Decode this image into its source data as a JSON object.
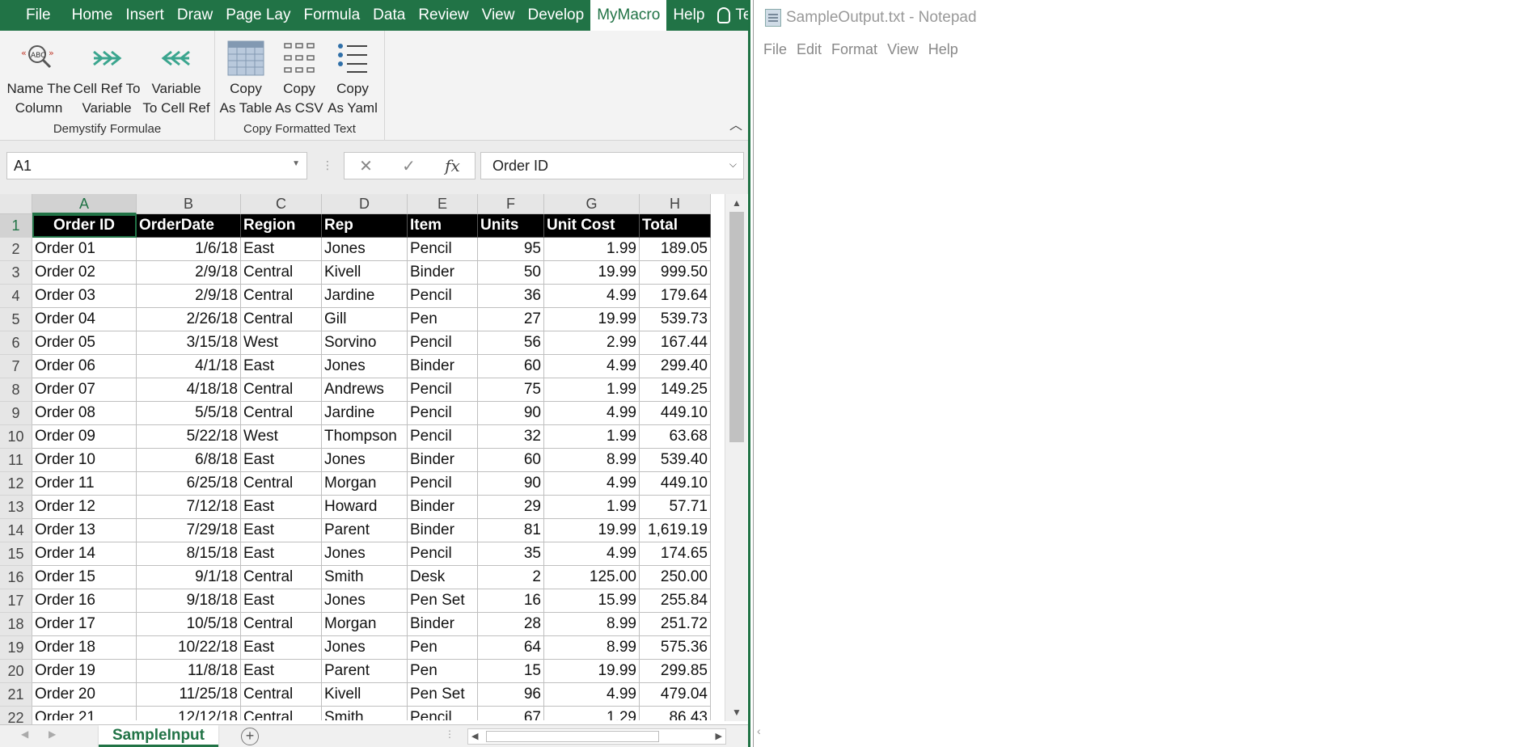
{
  "excel": {
    "tabs": [
      "File",
      "Home",
      "Insert",
      "Draw",
      "Page Lay",
      "Formula",
      "Data",
      "Review",
      "View",
      "Develop",
      "MyMacro",
      "Help"
    ],
    "active_tab": "MyMacro",
    "tell_me": "Tell me w",
    "groups": {
      "demystify": {
        "label": "Demystify Formulae",
        "buttons": [
          {
            "line1": "Name The",
            "line2": "Column"
          },
          {
            "line1": "Cell Ref To",
            "line2": "Variable"
          },
          {
            "line1": "Variable",
            "line2": "To Cell Ref"
          }
        ]
      },
      "copy_formatted": {
        "label": "Copy Formatted Text",
        "buttons": [
          {
            "line1": "Copy",
            "line2": "As Table"
          },
          {
            "line1": "Copy",
            "line2": "As CSV"
          },
          {
            "line1": "Copy",
            "line2": "As Yaml"
          }
        ]
      }
    },
    "name_box": "A1",
    "formula_fx": "fx",
    "formula_value": "Order ID",
    "columns": [
      "A",
      "B",
      "C",
      "D",
      "E",
      "F",
      "G",
      "H"
    ],
    "header_row": [
      "Order ID",
      "OrderDate",
      "Region",
      "Rep",
      "Item",
      "Units",
      "Unit Cost",
      "Total"
    ],
    "rows": [
      [
        "Order 01",
        "1/6/18",
        "East",
        "Jones",
        "Pencil",
        "95",
        "1.99",
        "189.05"
      ],
      [
        "Order 02",
        "2/9/18",
        "Central",
        "Kivell",
        "Binder",
        "50",
        "19.99",
        "999.50"
      ],
      [
        "Order 03",
        "2/9/18",
        "Central",
        "Jardine",
        "Pencil",
        "36",
        "4.99",
        "179.64"
      ],
      [
        "Order 04",
        "2/26/18",
        "Central",
        "Gill",
        "Pen",
        "27",
        "19.99",
        "539.73"
      ],
      [
        "Order 05",
        "3/15/18",
        "West",
        "Sorvino",
        "Pencil",
        "56",
        "2.99",
        "167.44"
      ],
      [
        "Order 06",
        "4/1/18",
        "East",
        "Jones",
        "Binder",
        "60",
        "4.99",
        "299.40"
      ],
      [
        "Order 07",
        "4/18/18",
        "Central",
        "Andrews",
        "Pencil",
        "75",
        "1.99",
        "149.25"
      ],
      [
        "Order 08",
        "5/5/18",
        "Central",
        "Jardine",
        "Pencil",
        "90",
        "4.99",
        "449.10"
      ],
      [
        "Order 09",
        "5/22/18",
        "West",
        "Thompson",
        "Pencil",
        "32",
        "1.99",
        "63.68"
      ],
      [
        "Order 10",
        "6/8/18",
        "East",
        "Jones",
        "Binder",
        "60",
        "8.99",
        "539.40"
      ],
      [
        "Order 11",
        "6/25/18",
        "Central",
        "Morgan",
        "Pencil",
        "90",
        "4.99",
        "449.10"
      ],
      [
        "Order 12",
        "7/12/18",
        "East",
        "Howard",
        "Binder",
        "29",
        "1.99",
        "57.71"
      ],
      [
        "Order 13",
        "7/29/18",
        "East",
        "Parent",
        "Binder",
        "81",
        "19.99",
        "1,619.19"
      ],
      [
        "Order 14",
        "8/15/18",
        "East",
        "Jones",
        "Pencil",
        "35",
        "4.99",
        "174.65"
      ],
      [
        "Order 15",
        "9/1/18",
        "Central",
        "Smith",
        "Desk",
        "2",
        "125.00",
        "250.00"
      ],
      [
        "Order 16",
        "9/18/18",
        "East",
        "Jones",
        "Pen Set",
        "16",
        "15.99",
        "255.84"
      ],
      [
        "Order 17",
        "10/5/18",
        "Central",
        "Morgan",
        "Binder",
        "28",
        "8.99",
        "251.72"
      ],
      [
        "Order 18",
        "10/22/18",
        "East",
        "Jones",
        "Pen",
        "64",
        "8.99",
        "575.36"
      ],
      [
        "Order 19",
        "11/8/18",
        "East",
        "Parent",
        "Pen",
        "15",
        "19.99",
        "299.85"
      ],
      [
        "Order 20",
        "11/25/18",
        "Central",
        "Kivell",
        "Pen Set",
        "96",
        "4.99",
        "479.04"
      ],
      [
        "Order 21",
        "12/12/18",
        "Central",
        "Smith",
        "Pencil",
        "67",
        "1.29",
        "86.43"
      ]
    ],
    "row_numbers": [
      "1",
      "2",
      "3",
      "4",
      "5",
      "6",
      "7",
      "8",
      "9",
      "10",
      "11",
      "12",
      "13",
      "14",
      "15",
      "16",
      "17",
      "18",
      "19",
      "20",
      "21",
      "22"
    ],
    "sheet_tab": "SampleInput",
    "accent_color": "#217346"
  },
  "notepad": {
    "title": "SampleOutput.txt - Notepad",
    "menu": [
      "File",
      "Edit",
      "Format",
      "View",
      "Help"
    ],
    "content": ""
  }
}
